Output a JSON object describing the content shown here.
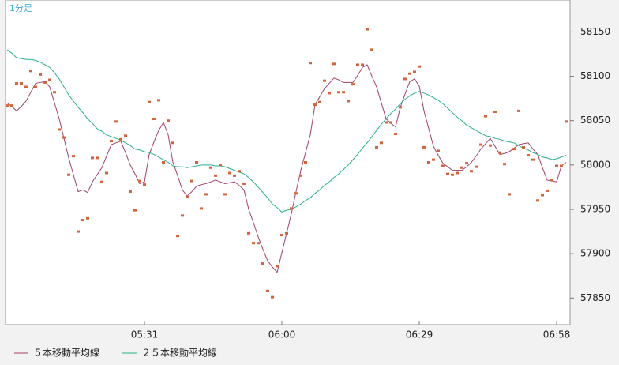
{
  "chart_data": {
    "type": "line",
    "title": "1分足",
    "categories": [
      null,
      null,
      null,
      null,
      null,
      null,
      null,
      null,
      null,
      null,
      null,
      null,
      null,
      null,
      null,
      null,
      null,
      null,
      null,
      null,
      null,
      null,
      null,
      null,
      null,
      null,
      null,
      null,
      null,
      "05:31",
      null,
      null,
      null,
      null,
      null,
      null,
      null,
      null,
      null,
      null,
      null,
      null,
      null,
      null,
      null,
      null,
      null,
      null,
      null,
      null,
      null,
      null,
      null,
      null,
      null,
      null,
      null,
      null,
      "06:00",
      null,
      null,
      null,
      null,
      null,
      null,
      null,
      null,
      null,
      null,
      null,
      null,
      null,
      null,
      null,
      null,
      null,
      null,
      null,
      null,
      null,
      null,
      null,
      null,
      null,
      null,
      null,
      null,
      "06:29",
      null,
      null,
      null,
      null,
      null,
      null,
      null,
      null,
      null,
      null,
      null,
      null,
      null,
      null,
      null,
      null,
      null,
      null,
      null,
      null,
      null,
      null,
      null,
      null,
      null,
      null,
      null,
      null,
      "06:58",
      null,
      null
    ],
    "values": [
      58067,
      58067,
      58092,
      58092,
      58088,
      58106,
      58088,
      58102,
      58093,
      58096,
      58082,
      58040,
      58031,
      57989,
      58010,
      57925,
      57938,
      57940,
      58008,
      58008,
      57981,
      57991,
      58027,
      58049,
      58029,
      58033,
      57970,
      57949,
      57982,
      57978,
      58071,
      58052,
      58073,
      58003,
      58050,
      58025,
      57920,
      57943,
      57964,
      57982,
      58003,
      57951,
      57967,
      57997,
      57988,
      58000,
      57967,
      57991,
      57988,
      57993,
      57979,
      57923,
      57912,
      57912,
      57889,
      57858,
      57851,
      57886,
      57921,
      57923,
      57951,
      57968,
      57988,
      58003,
      58115,
      58068,
      58071,
      58095,
      58081,
      58114,
      58082,
      58082,
      58072,
      58091,
      58113,
      58113,
      58153,
      58130,
      58020,
      58025,
      58048,
      58048,
      58035,
      58065,
      58097,
      58103,
      58105,
      58111,
      58020,
      58003,
      58006,
      58016,
      57999,
      57990,
      57989,
      57991,
      57997,
      58002,
      57993,
      57998,
      58023,
      58055,
      58022,
      58060,
      58014,
      58001,
      57967,
      58018,
      58061,
      58020,
      58011,
      58006,
      57960,
      57966,
      57971,
      57983,
      57999,
      57999,
      58049
    ],
    "color": "#d4643c",
    "series": [
      {
        "name": "５本移動平均線",
        "color": "#a0406a",
        "values": [
          58070,
          58066,
          58061,
          58066,
          58072,
          58082,
          58092,
          58093,
          58094,
          58088,
          58070,
          58052,
          58030,
          58008,
          57989,
          57970,
          57972,
          57969,
          57981,
          57989,
          57997,
          58010,
          58023,
          58025,
          58027,
          58014,
          58000,
          57990,
          57979,
          57981,
          58012,
          58026,
          58039,
          58048,
          58034,
          58003,
          57988,
          57972,
          57965,
          57970,
          57976,
          57978,
          57979,
          57981,
          57983,
          57981,
          57979,
          57980,
          57981,
          57977,
          57972,
          57950,
          57935,
          57919,
          57905,
          57892,
          57885,
          57879,
          57901,
          57923,
          57945,
          57970,
          57994,
          58014,
          58034,
          58068,
          58077,
          58086,
          58092,
          58098,
          58096,
          58093,
          58093,
          58093,
          58101,
          58110,
          58113,
          58100,
          58088,
          58070,
          58052,
          58047,
          58043,
          58065,
          58080,
          58094,
          58097,
          58089,
          58061,
          58041,
          58021,
          58011,
          58002,
          57998,
          57994,
          57994,
          57994,
          57998,
          58003,
          58010,
          58018,
          58024,
          58030,
          58021,
          58012,
          58013,
          58015,
          58019,
          58023,
          58024,
          58025,
          58018,
          58012,
          57997,
          57983,
          57982,
          57981,
          57999,
          58003
        ]
      },
      {
        "name": "２５本移動平均線",
        "color": "#2ab08c",
        "values": [
          58130,
          58126,
          58121,
          58120,
          58119,
          58119,
          58118,
          58116,
          58113,
          58110,
          58104,
          58097,
          58088,
          58079,
          58072,
          58065,
          58059,
          58052,
          58047,
          58041,
          58038,
          58034,
          58032,
          58030,
          58028,
          58025,
          58022,
          58018,
          58017,
          58015,
          58014,
          58012,
          58009,
          58006,
          58003,
          57999,
          57998,
          57998,
          57997,
          57998,
          57999,
          58000,
          58000,
          58000,
          57999,
          57999,
          57998,
          57996,
          57994,
          57992,
          57990,
          57986,
          57981,
          57975,
          57969,
          57963,
          57956,
          57952,
          57947,
          57949,
          57950,
          57953,
          57956,
          57960,
          57963,
          57968,
          57972,
          57977,
          57981,
          57986,
          57990,
          57995,
          58000,
          58006,
          58012,
          58019,
          58025,
          58032,
          58039,
          58046,
          58052,
          58058,
          58063,
          58069,
          58074,
          58078,
          58081,
          58083,
          58081,
          58079,
          58076,
          58073,
          58069,
          58064,
          58059,
          58054,
          58050,
          58045,
          58042,
          58039,
          58036,
          58033,
          58032,
          58030,
          58029,
          58027,
          58026,
          58025,
          58022,
          58019,
          58017,
          58014,
          58012,
          58009,
          58008,
          58006,
          58007,
          58009,
          58011
        ]
      }
    ],
    "ylim": [
      57820,
      58186
    ],
    "yticks": [
      57850,
      57900,
      57950,
      58000,
      58050,
      58100,
      58150
    ]
  }
}
